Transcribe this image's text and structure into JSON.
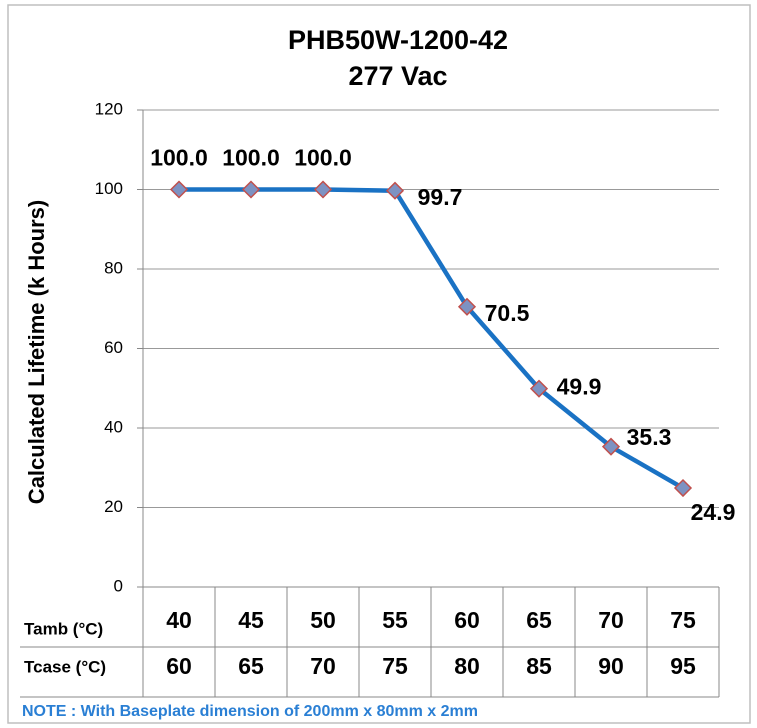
{
  "chart_data": {
    "type": "line",
    "title": [
      "PHB50W-1200-42",
      "277 Vac"
    ],
    "y_label": "Calculated Lifetime (k Hours)",
    "categories": [
      "40",
      "45",
      "50",
      "55",
      "60",
      "65",
      "70",
      "75"
    ],
    "x_rows": [
      {
        "label": "Tamb (°C)",
        "values": [
          "40",
          "45",
          "50",
          "55",
          "60",
          "65",
          "70",
          "75"
        ]
      },
      {
        "label": "Tcase (°C)",
        "values": [
          "60",
          "65",
          "70",
          "75",
          "80",
          "85",
          "90",
          "95"
        ]
      }
    ],
    "values": [
      100,
      100,
      100,
      99.7,
      70.5,
      49.9,
      35.3,
      24.9
    ],
    "value_labels": [
      "100.0",
      "100.0",
      "100.0",
      "99.7",
      "70.5",
      "49.9",
      "35.3",
      "24.9"
    ],
    "color": "#1a72c4",
    "marker_fill": "#7d92c2",
    "marker_edge": "#c0504d",
    "ylim": [
      0,
      120
    ],
    "yticks": [
      0,
      20,
      40,
      60,
      80,
      100,
      120
    ],
    "grid": true,
    "note": "NOTE : With Baseplate dimension of 200mm x 80mm x 2mm"
  }
}
